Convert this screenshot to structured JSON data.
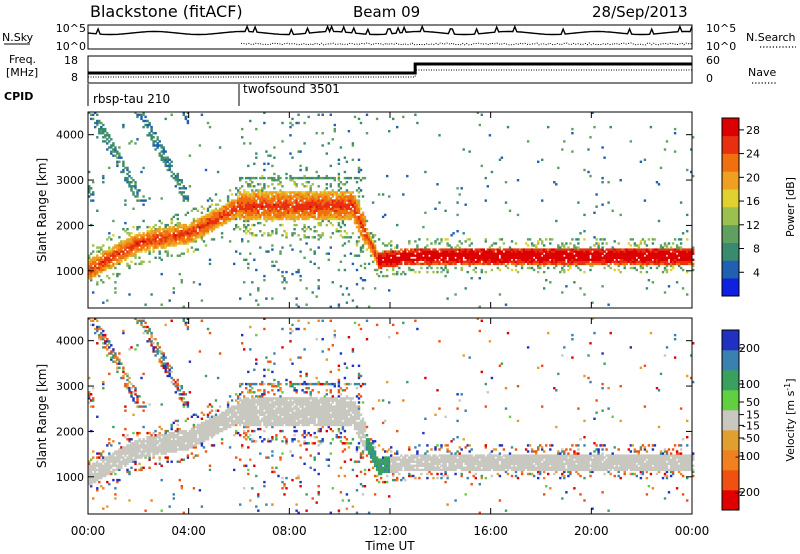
{
  "header": {
    "site": "Blackstone (fitACF)",
    "beam": "Beam 09",
    "date": "28/Sep/2013"
  },
  "status_panels": {
    "nsky_label": "N.Sky",
    "nsearch_label": "N.Search",
    "noise_ticks": [
      "10^5",
      "10^0"
    ],
    "freq_label_top": "Freq.",
    "freq_label_unit": "[MHz]",
    "freq_ticks": [
      "18",
      "8"
    ],
    "nave_label": "Nave",
    "nave_ticks": [
      "60",
      "0"
    ],
    "cpid_label": "CPID",
    "cpid_segments": [
      {
        "name": "rbsp-tau 210",
        "start_hour": 0
      },
      {
        "name": "twofsound 3501",
        "start_hour": 6
      }
    ]
  },
  "colors": {
    "power_scale": [
      "#1020e0",
      "#2060b0",
      "#3a8a70",
      "#5fa060",
      "#9ac050",
      "#e0d030",
      "#f0a020",
      "#f07010",
      "#e83010",
      "#dd0000"
    ],
    "velocity_scale": [
      "#2030c0",
      "#3a80b0",
      "#3aa060",
      "#60d040",
      "#c8c8c0",
      "#e0a030",
      "#f08020",
      "#f05010",
      "#e00000"
    ]
  },
  "chart_data": [
    {
      "type": "heatmap",
      "title": "Power",
      "xlabel": "Time UT",
      "ylabel": "Slant Range [km]",
      "x_range_hours": [
        0,
        24
      ],
      "xticks": [
        "00:00",
        "04:00",
        "08:00",
        "12:00",
        "16:00",
        "20:00",
        "00:00"
      ],
      "ylim": [
        180,
        4500
      ],
      "yticks": [
        1000,
        2000,
        3000,
        4000
      ],
      "colorbar": {
        "label": "Power [dB]",
        "ticks": [
          4,
          8,
          12,
          16,
          20,
          24,
          28
        ],
        "range": [
          0,
          30
        ]
      },
      "main_echo_band_km": [
        {
          "hour": 0,
          "range": 1000
        },
        {
          "hour": 2,
          "range": 1600
        },
        {
          "hour": 4,
          "range": 1800
        },
        {
          "hour": 6,
          "range": 2400
        },
        {
          "hour": 10.5,
          "range": 2400
        },
        {
          "hour": 11.5,
          "range": 1200
        },
        {
          "hour": 13,
          "range": 1300
        },
        {
          "hour": 24,
          "range": 1300
        }
      ]
    },
    {
      "type": "heatmap",
      "title": "Velocity",
      "xlabel": "Time UT",
      "ylabel": "Slant Range [km]",
      "x_range_hours": [
        0,
        24
      ],
      "xticks": [
        "00:00",
        "04:00",
        "08:00",
        "12:00",
        "16:00",
        "20:00",
        "00:00"
      ],
      "ylim": [
        180,
        4500
      ],
      "yticks": [
        1000,
        2000,
        3000,
        4000
      ],
      "colorbar": {
        "label": "Velocity [m s^-1]",
        "ticks": [
          200,
          100,
          50,
          15,
          -15,
          -50,
          -100,
          -200
        ],
        "range": [
          -250,
          250
        ]
      }
    }
  ],
  "axes_text": {
    "ylabel": "Slant Range [km]",
    "xlabel": "Time UT",
    "power_label": "Power [dB]",
    "velocity_label_main": "Velocity [m s",
    "velocity_label_sup": "-1",
    "velocity_label_end": "]"
  }
}
